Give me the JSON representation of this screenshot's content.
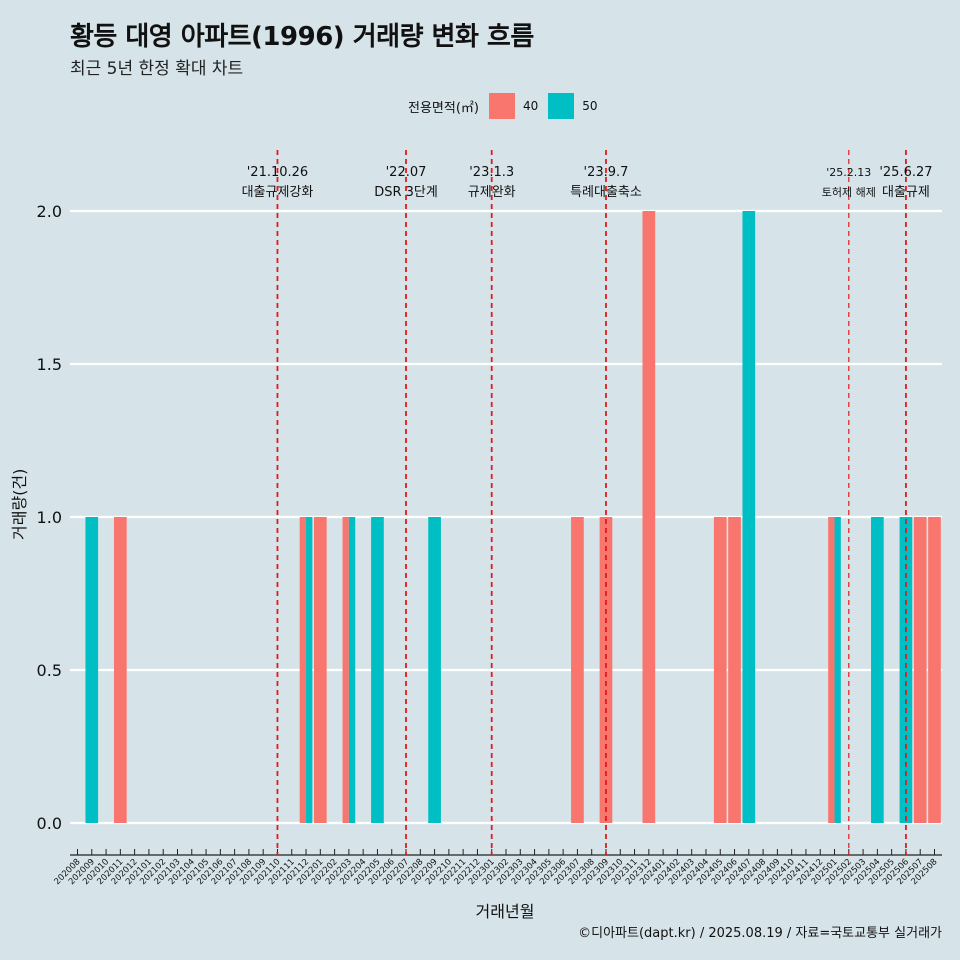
{
  "page": {
    "title": "황등 대영 아파트(1996) 거래량 변화 흐름",
    "subtitle": "최근 5년 한정 확대 차트",
    "caption": "©디아파트(dapt.kr) / 2025.08.19 / 자료=국토교통부 실거래가"
  },
  "colors": {
    "s40": "#f8766d",
    "s50": "#00bfc4",
    "grid": "#ffffff",
    "event": "#e31a1c",
    "background": "#d6e4ea"
  },
  "legend": {
    "title": "전용면적(㎡)",
    "items": [
      "40",
      "50"
    ]
  },
  "chart_data": {
    "type": "bar",
    "xlabel": "거래년월",
    "ylabel": "거래량(건)",
    "ylim": [
      0,
      2
    ],
    "yticks": [
      "0.0",
      "0.5",
      "1.0",
      "1.5",
      "2.0"
    ],
    "grid": "horizontal",
    "legend_position": "top",
    "categories": [
      "202008",
      "202009",
      "202010",
      "202011",
      "202012",
      "202101",
      "202102",
      "202103",
      "202104",
      "202105",
      "202106",
      "202107",
      "202108",
      "202109",
      "202110",
      "202111",
      "202112",
      "202201",
      "202202",
      "202203",
      "202204",
      "202205",
      "202206",
      "202207",
      "202208",
      "202209",
      "202210",
      "202211",
      "202212",
      "202301",
      "202302",
      "202303",
      "202304",
      "202305",
      "202306",
      "202307",
      "202308",
      "202309",
      "202310",
      "202311",
      "202312",
      "202401",
      "202402",
      "202403",
      "202404",
      "202405",
      "202406",
      "202407",
      "202408",
      "202409",
      "202410",
      "202411",
      "202412",
      "202501",
      "202502",
      "202503",
      "202504",
      "202505",
      "202506",
      "202507",
      "202508"
    ],
    "series": [
      {
        "name": "40",
        "values": [
          0,
          0,
          0,
          1,
          0,
          0,
          0,
          0,
          0,
          0,
          0,
          0,
          0,
          0,
          0,
          0,
          1,
          1,
          0,
          1,
          0,
          0,
          0,
          0,
          0,
          0,
          0,
          0,
          0,
          0,
          0,
          0,
          0,
          0,
          0,
          1,
          0,
          1,
          0,
          0,
          2,
          0,
          0,
          0,
          0,
          1,
          1,
          0,
          0,
          0,
          0,
          0,
          0,
          1,
          0,
          0,
          0,
          0,
          0,
          1,
          1
        ]
      },
      {
        "name": "50",
        "values": [
          0,
          1,
          0,
          0,
          0,
          0,
          0,
          0,
          0,
          0,
          0,
          0,
          0,
          0,
          0,
          0,
          1,
          0,
          0,
          1,
          0,
          1,
          0,
          0,
          0,
          1,
          0,
          0,
          0,
          0,
          0,
          0,
          0,
          0,
          0,
          0,
          0,
          0,
          0,
          0,
          0,
          0,
          0,
          0,
          0,
          0,
          0,
          2,
          0,
          0,
          0,
          0,
          0,
          1,
          0,
          0,
          1,
          0,
          1,
          0,
          0
        ]
      }
    ],
    "annotations": [
      {
        "date": "'21.10.26",
        "label": "대출규제강화",
        "x": "202110"
      },
      {
        "date": "'22.07",
        "label": "DSR 3단계",
        "x": "202207"
      },
      {
        "date": "'23.1.3",
        "label": "규제완화",
        "x": "202301"
      },
      {
        "date": "'23.9.7",
        "label": "특례대출축소",
        "x": "202309"
      },
      {
        "date": "'25.2.13",
        "label": "토허제 해제",
        "x": "202502"
      },
      {
        "date": "'25.6.27",
        "label": "대출규제",
        "x": "202506"
      }
    ]
  }
}
